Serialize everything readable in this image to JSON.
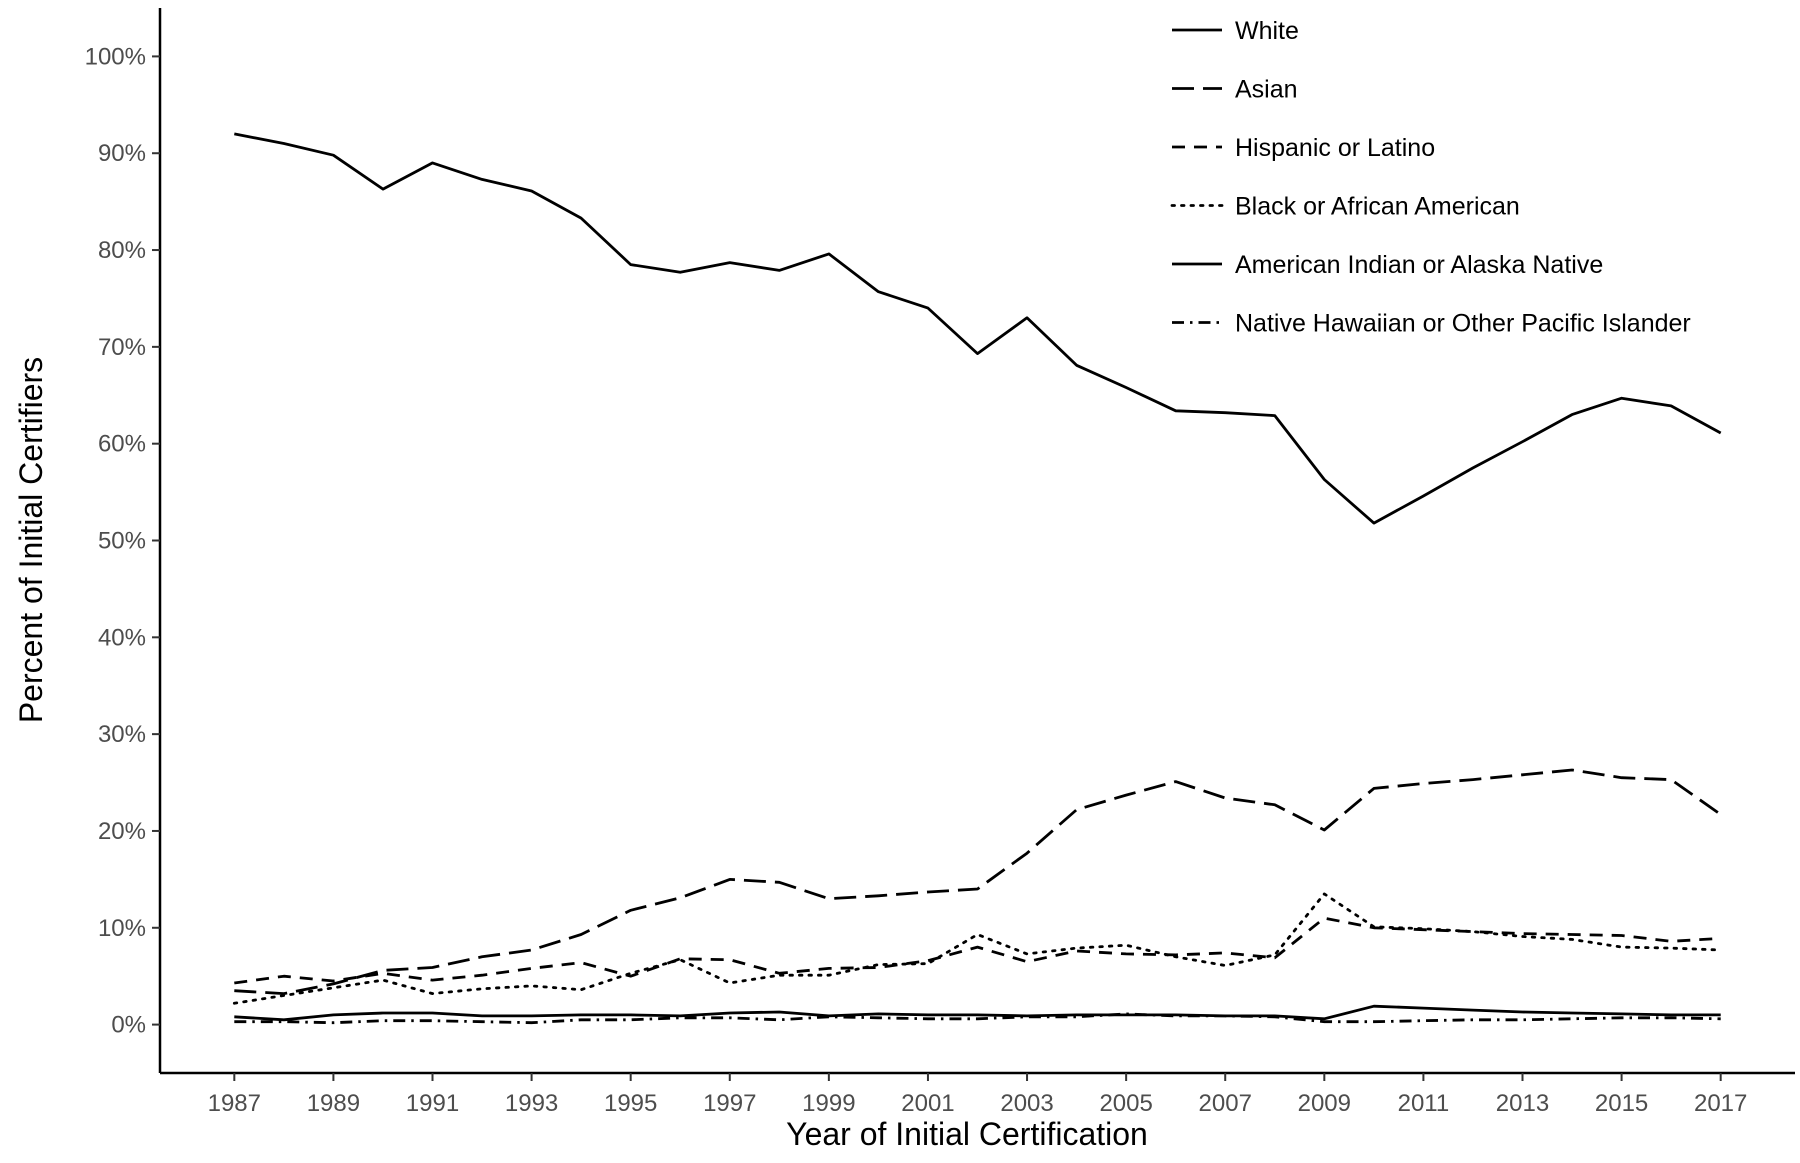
{
  "chart_data": {
    "type": "line",
    "title": "",
    "xlabel": "Year of Initial Certification",
    "ylabel": "Percent of Initial Certifiers",
    "x": [
      1987,
      1988,
      1989,
      1990,
      1991,
      1992,
      1993,
      1994,
      1995,
      1996,
      1997,
      1998,
      1999,
      2000,
      2001,
      2002,
      2003,
      2004,
      2005,
      2006,
      2007,
      2008,
      2009,
      2010,
      2011,
      2012,
      2013,
      2014,
      2015,
      2016,
      2017
    ],
    "xlim": [
      1985.5,
      2018.5
    ],
    "ylim": [
      -5,
      105
    ],
    "x_ticks": [
      "1987",
      "1989",
      "1991",
      "1993",
      "1995",
      "1997",
      "1999",
      "2001",
      "2003",
      "2005",
      "2007",
      "2009",
      "2011",
      "2013",
      "2015",
      "2017"
    ],
    "y_ticks": [
      "0%",
      "10%",
      "20%",
      "30%",
      "40%",
      "50%",
      "60%",
      "70%",
      "80%",
      "90%",
      "100%"
    ],
    "grid": false,
    "legend_position": "top-right",
    "series": [
      {
        "name": "White",
        "style": "solid",
        "values": [
          92.0,
          91.0,
          89.8,
          86.3,
          89.0,
          87.3,
          86.1,
          83.3,
          78.5,
          77.7,
          78.7,
          77.9,
          79.6,
          75.7,
          74.0,
          69.3,
          73.0,
          68.1,
          65.8,
          63.4,
          63.2,
          62.9,
          56.3,
          51.8,
          54.6,
          57.5,
          60.2,
          63.0,
          64.7,
          63.9,
          61.1
        ]
      },
      {
        "name": "Asian",
        "style": "longdash",
        "values": [
          3.5,
          3.2,
          4.2,
          5.6,
          5.9,
          7.0,
          7.7,
          9.3,
          11.8,
          13.1,
          15.0,
          14.7,
          13.0,
          13.3,
          13.7,
          14.0,
          17.7,
          22.2,
          23.7,
          25.1,
          23.4,
          22.7,
          20.1,
          24.4,
          24.9,
          25.3,
          25.8,
          26.3,
          25.5,
          25.3,
          21.7
        ]
      },
      {
        "name": "Hispanic or Latino",
        "style": "dashed",
        "values": [
          4.3,
          5.0,
          4.5,
          5.3,
          4.6,
          5.1,
          5.8,
          6.4,
          5.0,
          6.8,
          6.7,
          5.3,
          5.8,
          5.9,
          6.6,
          8.0,
          6.5,
          7.6,
          7.3,
          7.2,
          7.4,
          6.9,
          11.0,
          10.0,
          9.8,
          9.6,
          9.4,
          9.3,
          9.2,
          8.6,
          8.9
        ]
      },
      {
        "name": "Black or African American",
        "style": "dotted",
        "values": [
          2.2,
          3.0,
          3.8,
          4.6,
          3.2,
          3.7,
          4.0,
          3.6,
          5.3,
          6.7,
          4.3,
          5.1,
          5.1,
          6.2,
          6.3,
          9.3,
          7.3,
          7.9,
          8.2,
          7.0,
          6.1,
          7.2,
          13.5,
          10.1,
          9.9,
          9.6,
          9.1,
          8.8,
          8.0,
          7.9,
          7.7
        ]
      },
      {
        "name": "American Indian or Alaska Native",
        "style": "solid",
        "values": [
          0.8,
          0.5,
          1.0,
          1.2,
          1.2,
          0.9,
          0.9,
          1.0,
          1.0,
          0.9,
          1.2,
          1.3,
          0.9,
          1.1,
          1.0,
          1.0,
          0.9,
          1.0,
          1.0,
          1.0,
          0.9,
          0.9,
          0.6,
          1.9,
          1.7,
          1.5,
          1.3,
          1.2,
          1.1,
          1.0,
          1.0
        ]
      },
      {
        "name": "Native Hawaiian or Other Pacific Islander",
        "style": "dashdot",
        "values": [
          0.3,
          0.3,
          0.2,
          0.4,
          0.4,
          0.3,
          0.2,
          0.5,
          0.5,
          0.7,
          0.7,
          0.5,
          0.8,
          0.7,
          0.6,
          0.6,
          0.8,
          0.8,
          1.1,
          0.9,
          0.9,
          0.8,
          0.3,
          0.3,
          0.4,
          0.5,
          0.5,
          0.6,
          0.7,
          0.7,
          0.6
        ]
      }
    ]
  }
}
